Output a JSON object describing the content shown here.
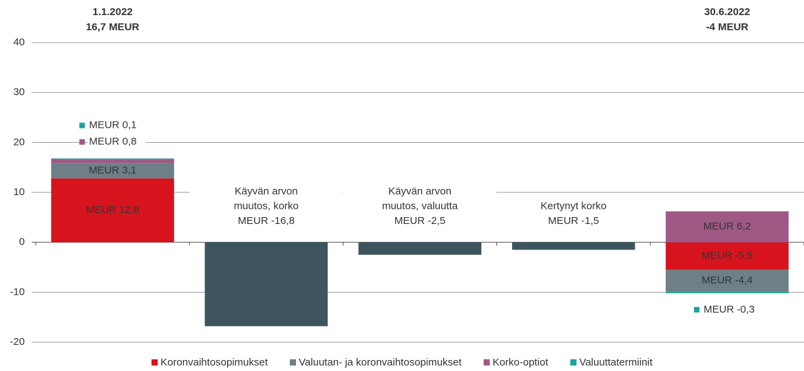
{
  "chart_data": {
    "type": "stacked-bar",
    "categories": [
      null,
      null,
      null,
      null,
      null
    ],
    "top_labels": [
      [
        "1.1.2022",
        "16,7 MEUR"
      ],
      null,
      null,
      null,
      [
        "30.6.2022",
        "-4 MEUR"
      ]
    ],
    "series": [
      {
        "name": "Koronvaihtosopimukset",
        "color": "#d7141e",
        "values": [
          12.8,
          null,
          null,
          null,
          -5.5
        ],
        "value_labels": [
          "MEUR 12,8",
          null,
          null,
          null,
          "MEUR -5,5"
        ]
      },
      {
        "name": "Valuutan- ja koronvaihtosopimukset",
        "color": "#6e7f87",
        "values": [
          3.1,
          null,
          null,
          null,
          -4.4
        ],
        "value_labels": [
          "MEUR 3,1",
          null,
          null,
          null,
          "MEUR -4,4"
        ]
      },
      {
        "name": "Korko-optiot",
        "color": "#9e5a85",
        "values": [
          0.8,
          null,
          null,
          null,
          6.2
        ],
        "value_labels": [
          "MEUR 0,8",
          null,
          null,
          null,
          "MEUR 6,2"
        ]
      },
      {
        "name": "Valuuttatermiinit",
        "color": "#1aa39a",
        "values": [
          0.1,
          null,
          null,
          null,
          -0.3
        ],
        "value_labels": [
          "MEUR 0,1",
          null,
          null,
          null,
          "MEUR -0,3"
        ]
      }
    ],
    "changes": {
      "color": "#3e545e",
      "values": [
        null,
        -16.8,
        -2.5,
        -1.5,
        null
      ],
      "value_labels": [
        null,
        [
          "Käyvän arvon",
          "muutos, korko",
          "MEUR -16,8"
        ],
        [
          "Käyvän arvon",
          "muutos, valuutta",
          "MEUR -2,5"
        ],
        [
          "Kertynyt korko",
          "MEUR -1,5"
        ],
        null
      ]
    },
    "ylim": [
      -20,
      40
    ],
    "yticks": [
      -20,
      -10,
      0,
      10,
      20,
      30,
      40
    ],
    "grid": true,
    "legend": "bottom"
  }
}
